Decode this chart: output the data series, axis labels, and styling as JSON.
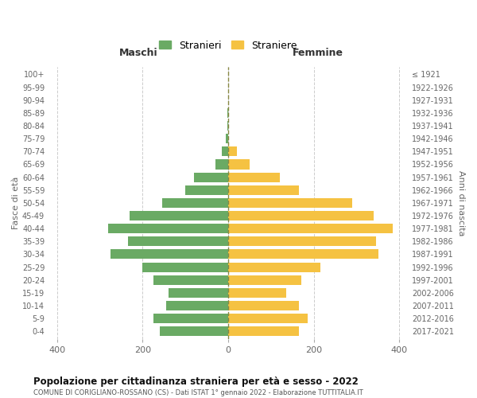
{
  "age_groups": [
    "0-4",
    "5-9",
    "10-14",
    "15-19",
    "20-24",
    "25-29",
    "30-34",
    "35-39",
    "40-44",
    "45-49",
    "50-54",
    "55-59",
    "60-64",
    "65-69",
    "70-74",
    "75-79",
    "80-84",
    "85-89",
    "90-94",
    "95-99",
    "100+"
  ],
  "birth_years": [
    "2017-2021",
    "2012-2016",
    "2007-2011",
    "2002-2006",
    "1997-2001",
    "1992-1996",
    "1987-1991",
    "1982-1986",
    "1977-1981",
    "1972-1976",
    "1967-1971",
    "1962-1966",
    "1957-1961",
    "1952-1956",
    "1947-1951",
    "1942-1946",
    "1937-1941",
    "1932-1936",
    "1927-1931",
    "1922-1926",
    "≤ 1921"
  ],
  "males": [
    160,
    175,
    145,
    140,
    175,
    200,
    275,
    235,
    280,
    230,
    155,
    100,
    80,
    30,
    15,
    5,
    2,
    2,
    0,
    0,
    0
  ],
  "females": [
    165,
    185,
    165,
    135,
    170,
    215,
    350,
    345,
    385,
    340,
    290,
    165,
    120,
    50,
    20,
    0,
    0,
    0,
    0,
    0,
    0
  ],
  "male_color": "#6aaa64",
  "female_color": "#f5c242",
  "background_color": "#ffffff",
  "grid_color": "#cccccc",
  "center_line_color": "#888844",
  "title": "Popolazione per cittadinanza straniera per età e sesso - 2022",
  "subtitle": "COMUNE DI CORIGLIANO-ROSSANO (CS) - Dati ISTAT 1° gennaio 2022 - Elaborazione TUTTITALIA.IT",
  "xlabel_left": "Maschi",
  "xlabel_right": "Femmine",
  "ylabel_left": "Fasce di età",
  "ylabel_right": "Anni di nascita",
  "legend_male": "Stranieri",
  "legend_female": "Straniere",
  "xlim": 420
}
